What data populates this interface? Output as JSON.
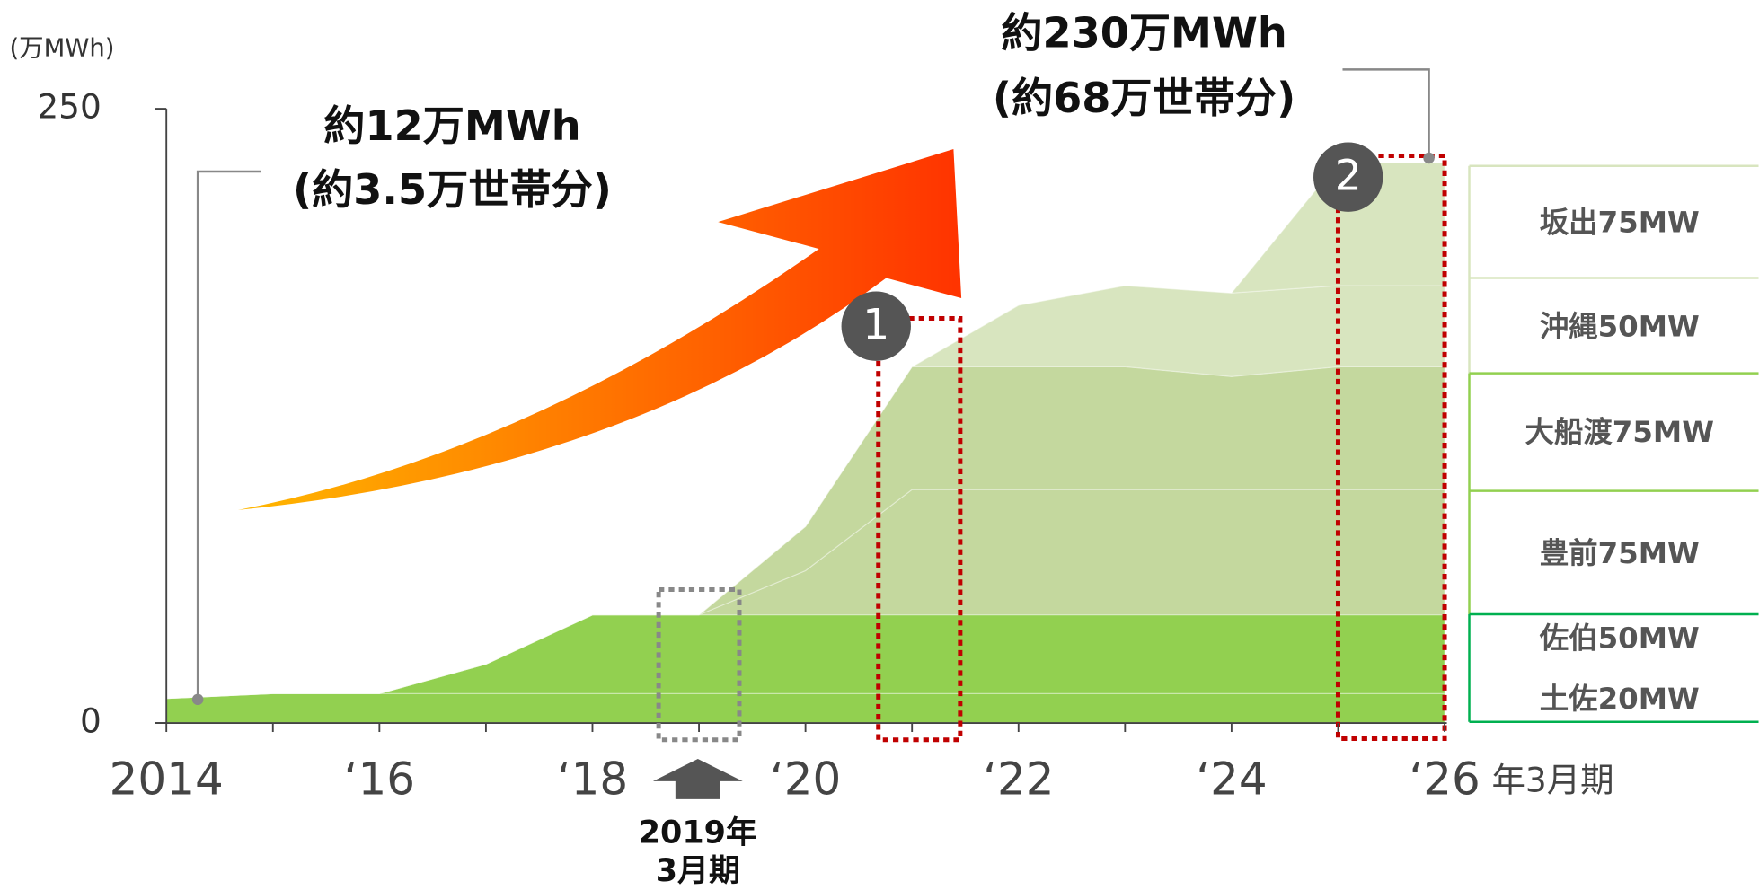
{
  "chart_data": {
    "type": "stacked_area",
    "y_unit_label": "(万MWh)",
    "x_suffix": "年3月期",
    "categories": [
      "2014",
      null,
      "‘16",
      null,
      "‘18",
      null,
      "‘20",
      null,
      "‘22",
      null,
      "‘24",
      null,
      "‘26"
    ],
    "ylim": [
      0,
      250
    ],
    "yticks": [
      0,
      250
    ],
    "series": [
      {
        "name": "土佐20MW",
        "color": "#92d050",
        "values": [
          10,
          12,
          12,
          12,
          12,
          12,
          12,
          12,
          12,
          12,
          12,
          12,
          12
        ]
      },
      {
        "name": "佐伯50MW",
        "color": "#92d050",
        "values": [
          0,
          0,
          0,
          12,
          32,
          32,
          32,
          32,
          32,
          32,
          32,
          32,
          32
        ]
      },
      {
        "name": "豊前75MW",
        "color": "#c4d89e",
        "values": [
          0,
          0,
          0,
          0,
          0,
          0,
          18,
          51,
          51,
          51,
          51,
          51,
          51
        ]
      },
      {
        "name": "大船渡75MW",
        "color": "#c4d89e",
        "values": [
          0,
          0,
          0,
          0,
          0,
          0,
          18,
          50,
          50,
          50,
          46,
          50,
          50
        ]
      },
      {
        "name": "沖縄50MW",
        "color": "#d8e5bf",
        "values": [
          0,
          0,
          0,
          0,
          0,
          0,
          0,
          0,
          25,
          33,
          34,
          33,
          33
        ]
      },
      {
        "name": "坂出75MW",
        "color": "#d8e5bf",
        "values": [
          0,
          0,
          0,
          0,
          0,
          0,
          0,
          0,
          0,
          0,
          0,
          50,
          50
        ]
      }
    ],
    "annotations": [
      "約12万MWh",
      "(約3.5万世帯分)",
      "約230万MWh",
      "(約68万世帯分)",
      "2019年",
      "3月期",
      "1",
      "2"
    ]
  }
}
